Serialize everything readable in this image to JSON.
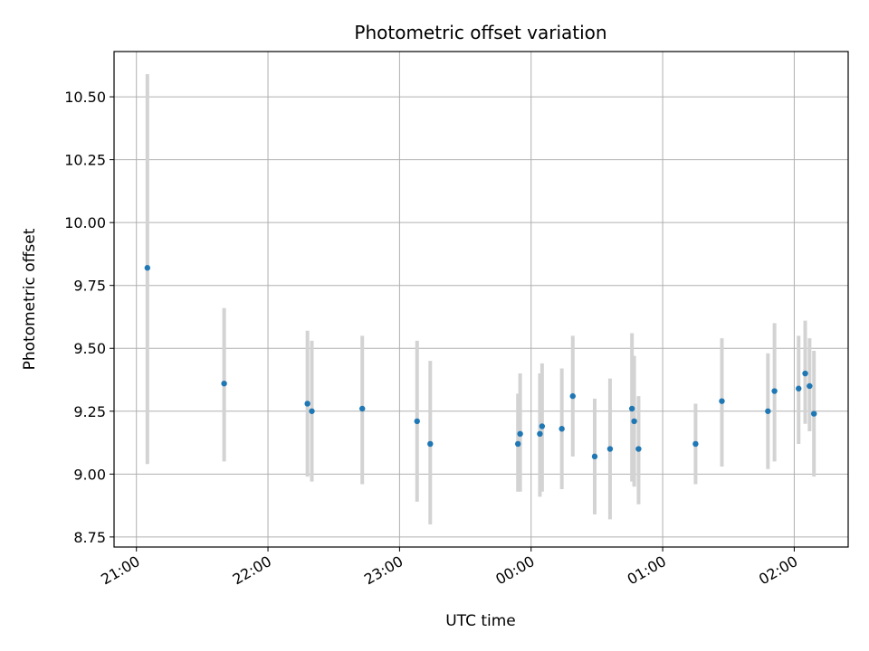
{
  "chart_data": {
    "type": "scatter",
    "title": "Photometric offset variation",
    "xlabel": "UTC time",
    "ylabel": "Photometric offset",
    "x_ticks": [
      "21:00",
      "22:00",
      "23:00",
      "00:00",
      "01:00",
      "02:00"
    ],
    "x_tick_hours": [
      21,
      22,
      23,
      24,
      25,
      26
    ],
    "y_ticks": [
      "8.75",
      "9.00",
      "9.25",
      "9.50",
      "9.75",
      "10.00",
      "10.25",
      "10.50"
    ],
    "xlim_hours": [
      20.83,
      26.41
    ],
    "ylim": [
      8.71,
      10.68
    ],
    "grid": true,
    "marker_color": "#1f77b4",
    "errorbar_color": "#d3d3d3",
    "points": [
      {
        "t": "21:05",
        "y": 9.82,
        "lo": 9.04,
        "hi": 10.59
      },
      {
        "t": "21:40",
        "y": 9.36,
        "lo": 9.05,
        "hi": 9.66
      },
      {
        "t": "22:18",
        "y": 9.28,
        "lo": 8.99,
        "hi": 9.57
      },
      {
        "t": "22:20",
        "y": 9.25,
        "lo": 8.97,
        "hi": 9.53
      },
      {
        "t": "22:43",
        "y": 9.26,
        "lo": 8.96,
        "hi": 9.55
      },
      {
        "t": "23:08",
        "y": 9.21,
        "lo": 8.89,
        "hi": 9.53
      },
      {
        "t": "23:14",
        "y": 9.12,
        "lo": 8.8,
        "hi": 9.45
      },
      {
        "t": "23:54",
        "y": 9.12,
        "lo": 8.93,
        "hi": 9.32
      },
      {
        "t": "23:55",
        "y": 9.16,
        "lo": 8.93,
        "hi": 9.4
      },
      {
        "t": "00:04",
        "y": 9.16,
        "lo": 8.91,
        "hi": 9.4
      },
      {
        "t": "00:05",
        "y": 9.19,
        "lo": 8.93,
        "hi": 9.44
      },
      {
        "t": "00:14",
        "y": 9.18,
        "lo": 8.94,
        "hi": 9.42
      },
      {
        "t": "00:19",
        "y": 9.31,
        "lo": 9.07,
        "hi": 9.55
      },
      {
        "t": "00:29",
        "y": 9.07,
        "lo": 8.84,
        "hi": 9.3
      },
      {
        "t": "00:36",
        "y": 9.1,
        "lo": 8.82,
        "hi": 9.38
      },
      {
        "t": "00:46",
        "y": 9.26,
        "lo": 8.97,
        "hi": 9.56
      },
      {
        "t": "00:47",
        "y": 9.21,
        "lo": 8.95,
        "hi": 9.47
      },
      {
        "t": "00:49",
        "y": 9.1,
        "lo": 8.88,
        "hi": 9.31
      },
      {
        "t": "01:15",
        "y": 9.12,
        "lo": 8.96,
        "hi": 9.28
      },
      {
        "t": "01:27",
        "y": 9.29,
        "lo": 9.03,
        "hi": 9.54
      },
      {
        "t": "01:48",
        "y": 9.25,
        "lo": 9.02,
        "hi": 9.48
      },
      {
        "t": "01:51",
        "y": 9.33,
        "lo": 9.05,
        "hi": 9.6
      },
      {
        "t": "02:02",
        "y": 9.34,
        "lo": 9.12,
        "hi": 9.55
      },
      {
        "t": "02:05",
        "y": 9.4,
        "lo": 9.2,
        "hi": 9.61
      },
      {
        "t": "02:07",
        "y": 9.35,
        "lo": 9.17,
        "hi": 9.54
      },
      {
        "t": "02:09",
        "y": 9.24,
        "lo": 8.99,
        "hi": 9.49
      }
    ]
  }
}
